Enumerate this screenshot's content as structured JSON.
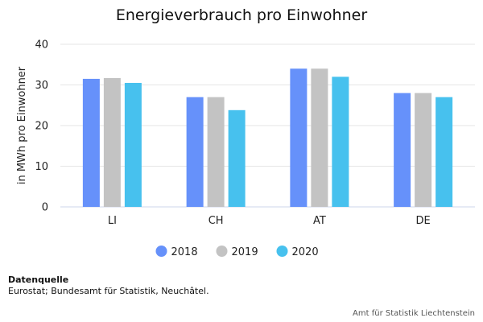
{
  "chart_data": {
    "type": "bar",
    "title": "Energieverbrauch pro Einwohner",
    "ylabel": "in MWh pro Einwohner",
    "xlabel": "",
    "ylim": [
      0,
      40
    ],
    "yticks": [
      0,
      10,
      20,
      30,
      40
    ],
    "grid": true,
    "legend_position": "bottom",
    "categories": [
      "LI",
      "CH",
      "AT",
      "DE"
    ],
    "series": [
      {
        "name": "2018",
        "color": "#6691fa",
        "values": [
          31.5,
          27,
          34,
          28
        ]
      },
      {
        "name": "2019",
        "color": "#c3c3c3",
        "values": [
          31.7,
          27,
          34,
          28
        ]
      },
      {
        "name": "2020",
        "color": "#47c1ee",
        "values": [
          30.5,
          23.8,
          32,
          27
        ]
      }
    ]
  },
  "source": {
    "label": "Datenquelle",
    "text": "Eurostat; Bundesamt für Statistik, Neuchâtel."
  },
  "credit": "Amt für Statistik Liechtenstein"
}
